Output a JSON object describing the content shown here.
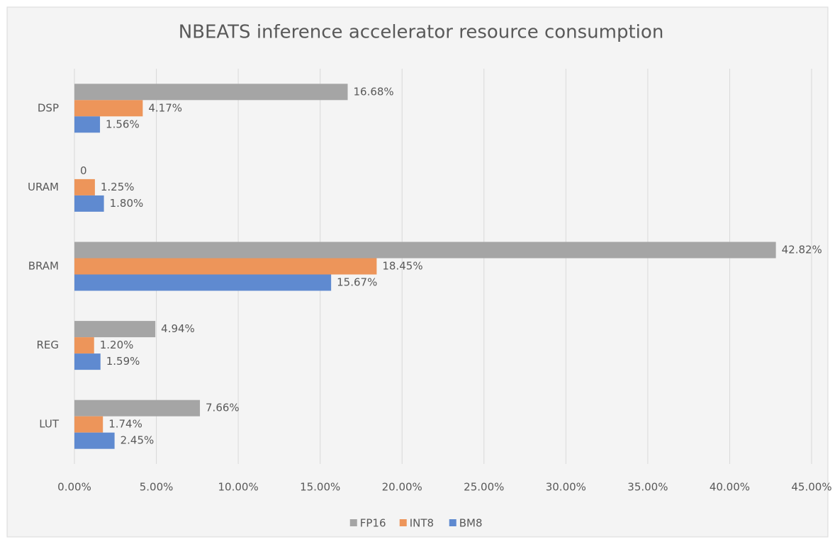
{
  "chart_data": {
    "type": "hbar",
    "title": "NBEATS inference accelerator resource consumption",
    "categories": [
      "DSP",
      "URAM",
      "BRAM",
      "REG",
      "LUT"
    ],
    "series": [
      {
        "name": "FP16",
        "color": "#a5a5a5",
        "values": [
          16.68,
          0,
          42.82,
          4.94,
          7.66
        ],
        "value_labels": [
          "16.68%",
          "0",
          "42.82%",
          "4.94%",
          "7.66%"
        ]
      },
      {
        "name": "INT8",
        "color": "#ed955a",
        "values": [
          4.17,
          1.25,
          18.45,
          1.2,
          1.74
        ],
        "value_labels": [
          "4.17%",
          "1.25%",
          "18.45%",
          "1.20%",
          "1.74%"
        ]
      },
      {
        "name": "BM8",
        "color": "#5f8ad0",
        "values": [
          1.56,
          1.8,
          15.67,
          1.59,
          2.45
        ],
        "value_labels": [
          "1.56%",
          "1.80%",
          "15.67%",
          "1.59%",
          "2.45%"
        ]
      }
    ],
    "xlim": [
      0,
      45
    ],
    "xticks": [
      {
        "value": 0,
        "label": "0.00%"
      },
      {
        "value": 5,
        "label": "5.00%"
      },
      {
        "value": 10,
        "label": "10.00%"
      },
      {
        "value": 15,
        "label": "15.00%"
      },
      {
        "value": 20,
        "label": "20.00%"
      },
      {
        "value": 25,
        "label": "25.00%"
      },
      {
        "value": 30,
        "label": "30.00%"
      },
      {
        "value": 35,
        "label": "35.00%"
      },
      {
        "value": 40,
        "label": "40.00%"
      },
      {
        "value": 45,
        "label": "45.00%"
      }
    ],
    "grid": true,
    "legend": "bottom"
  }
}
